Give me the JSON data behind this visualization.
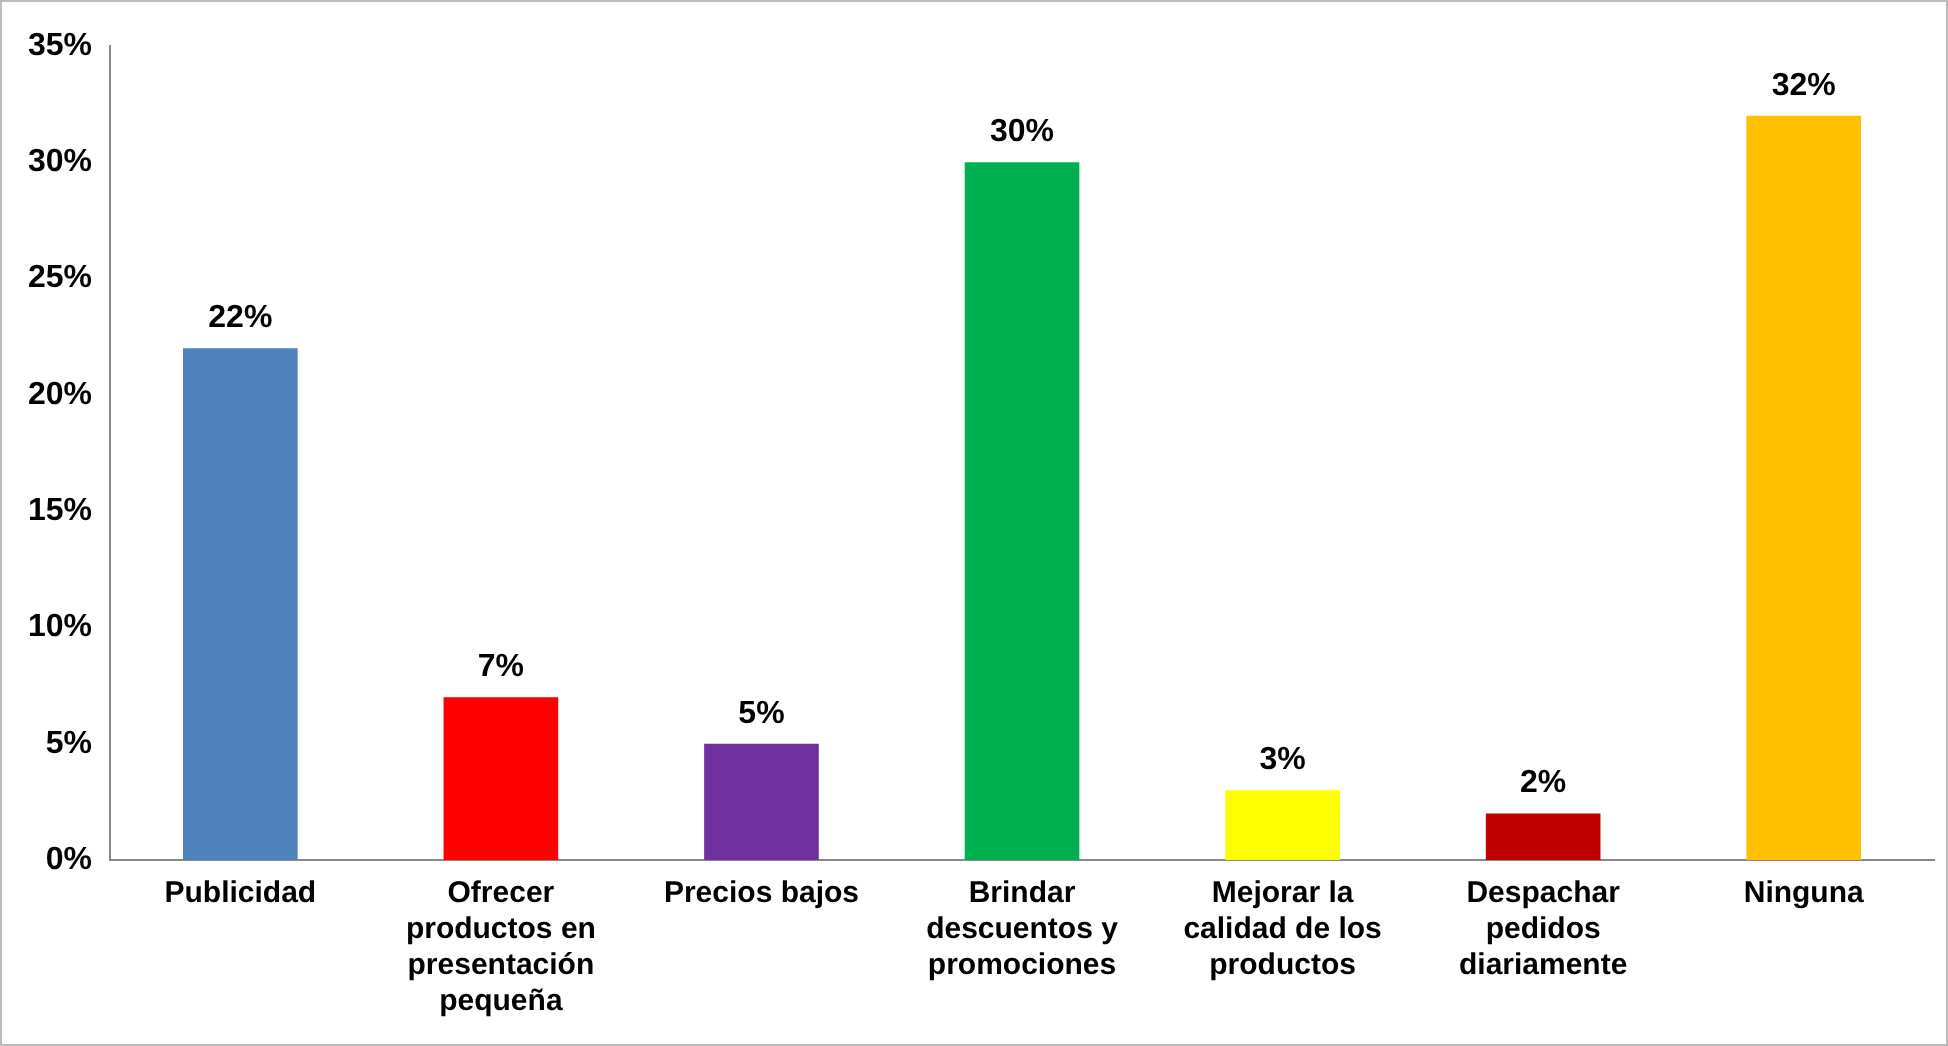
{
  "chart_data": {
    "type": "bar",
    "categories": [
      "Publicidad",
      "Ofrecer productos en presentación pequeña",
      "Precios bajos",
      "Brindar descuentos y promociones",
      "Mejorar la calidad de los productos",
      "Despachar pedidos diariamente",
      "Ninguna"
    ],
    "values": [
      22,
      7,
      5,
      30,
      3,
      2,
      32
    ],
    "colors": [
      "#4f81bd",
      "#ff0000",
      "#7030a0",
      "#00b050",
      "#ffff00",
      "#c00000",
      "#ffc000"
    ],
    "ylim": [
      0,
      35
    ],
    "yticks": [
      {
        "value": 0,
        "label": "0%"
      },
      {
        "value": 5,
        "label": "5%"
      },
      {
        "value": 10,
        "label": "10%"
      },
      {
        "value": 15,
        "label": "15%"
      },
      {
        "value": 20,
        "label": "20%"
      },
      {
        "value": 25,
        "label": "25%"
      },
      {
        "value": 30,
        "label": "30%"
      },
      {
        "value": 35,
        "label": "35%"
      }
    ],
    "value_labels": [
      "22%",
      "7%",
      "5%",
      "30%",
      "3%",
      "2%",
      "32%"
    ],
    "grid": false,
    "legend": false
  }
}
